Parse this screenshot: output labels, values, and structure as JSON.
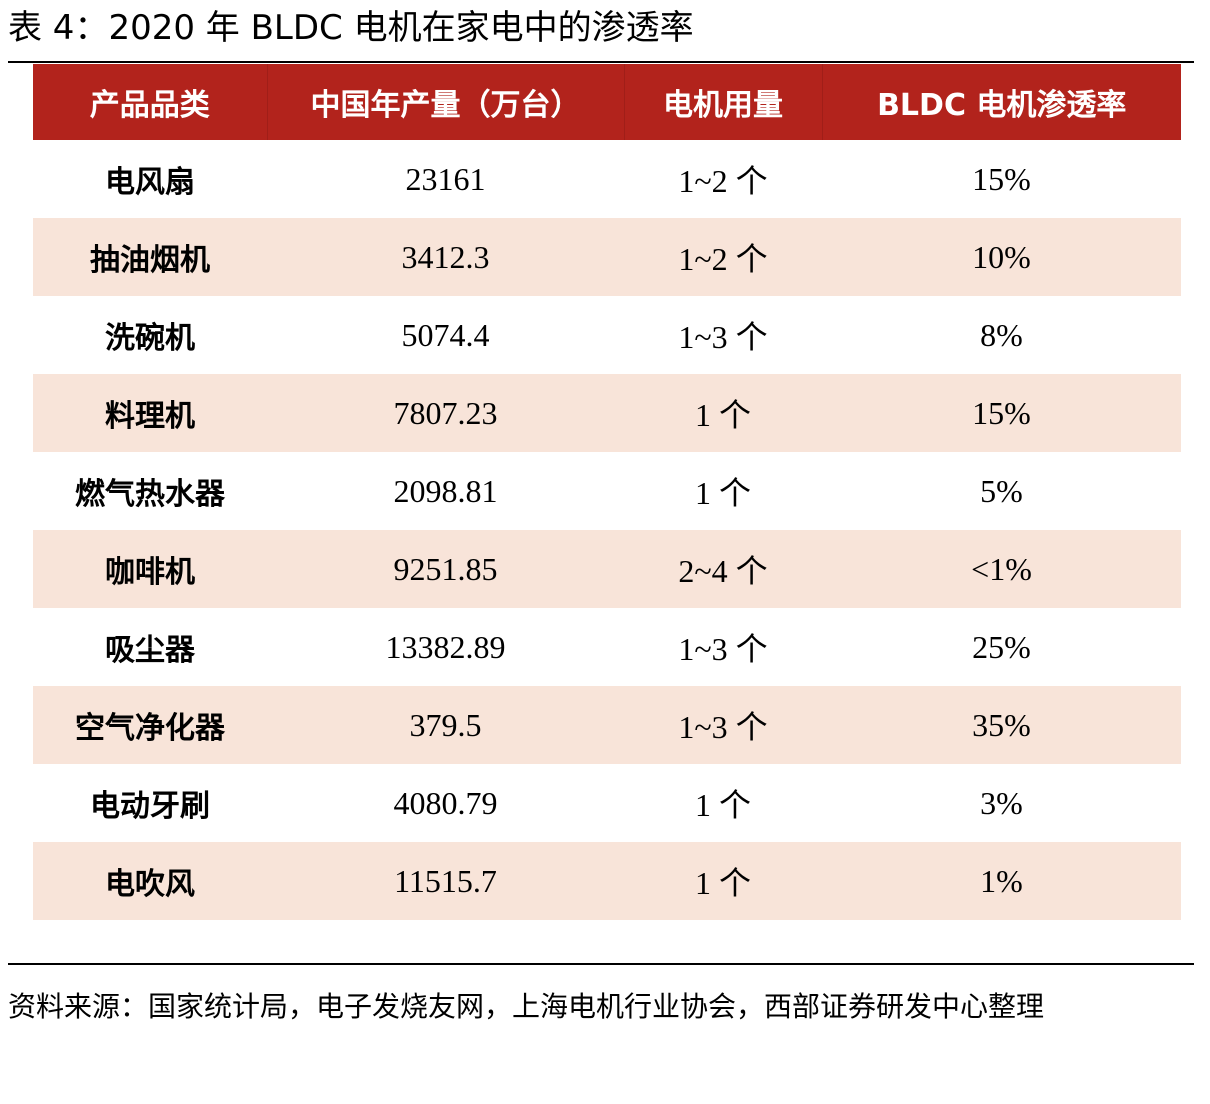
{
  "caption": "表 4：2020 年 BLDC 电机在家电中的渗透率",
  "table": {
    "headers": [
      "产品品类",
      "中国年产量（万台）",
      "电机用量",
      "BLDC 电机渗透率"
    ],
    "rows": [
      [
        "电风扇",
        "23161",
        "1~2 个",
        "15%"
      ],
      [
        "抽油烟机",
        "3412.3",
        "1~2 个",
        "10%"
      ],
      [
        "洗碗机",
        "5074.4",
        "1~3 个",
        "8%"
      ],
      [
        "料理机",
        "7807.23",
        "1 个",
        "15%"
      ],
      [
        "燃气热水器",
        "2098.81",
        "1 个",
        "5%"
      ],
      [
        "咖啡机",
        "9251.85",
        "2~4 个",
        "<1%"
      ],
      [
        "吸尘器",
        "13382.89",
        "1~3 个",
        "25%"
      ],
      [
        "空气净化器",
        "379.5",
        "1~3 个",
        "35%"
      ],
      [
        "电动牙刷",
        "4080.79",
        "1 个",
        "3%"
      ],
      [
        "电吹风",
        "11515.7",
        "1 个",
        "1%"
      ]
    ]
  },
  "source_note": "资料来源：国家统计局，电子发烧友网，上海电机行业协会，西部证券研发中心整理",
  "colors": {
    "header_bg": "#b2231c",
    "stripe_bg": "#f8e4d9"
  }
}
